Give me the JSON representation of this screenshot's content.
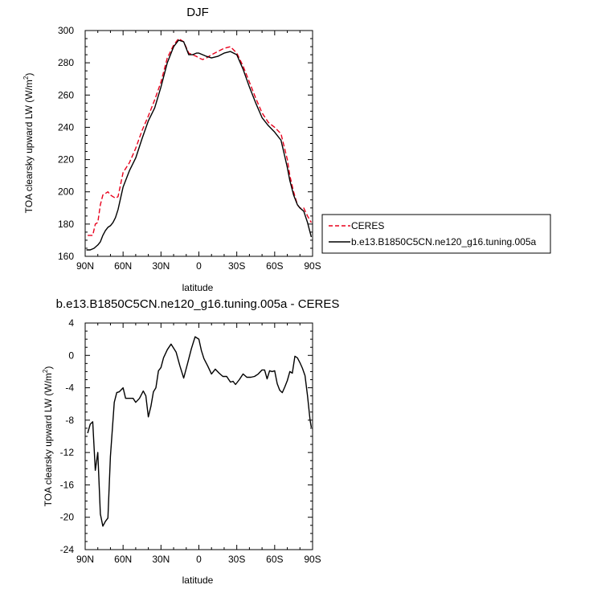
{
  "chart_data": [
    {
      "type": "line",
      "title": "DJF",
      "xlabel": "latitude",
      "ylabel": "TOA clearsky upward LW (W/m",
      "ylabel_superscript": "2",
      "ylabel_close": ")",
      "xlim": [
        90,
        -90
      ],
      "ylim": [
        160,
        300
      ],
      "x_ticks": [
        90,
        60,
        30,
        0,
        -30,
        -60,
        -90
      ],
      "x_tick_labels": [
        "90N",
        "60N",
        "30N",
        "0",
        "30S",
        "60S",
        "90S"
      ],
      "y_ticks": [
        160,
        180,
        200,
        220,
        240,
        260,
        280,
        300
      ],
      "y_tick_labels": [
        "160",
        "180",
        "200",
        "220",
        "240",
        "260",
        "280",
        "300"
      ],
      "legend_position": "right",
      "series": [
        {
          "name": "CERES",
          "color": "#e8001c",
          "style": "dashed",
          "x": [
            88,
            84,
            82,
            80,
            78,
            76,
            74,
            72,
            70,
            68,
            66,
            64,
            60,
            55,
            50,
            45,
            40,
            35,
            30,
            25,
            20,
            16,
            12,
            8,
            5,
            2,
            0,
            -3,
            -6,
            -10,
            -15,
            -20,
            -25,
            -30,
            -35,
            -40,
            -45,
            -50,
            -55,
            -60,
            -65,
            -70,
            -72,
            -75,
            -78,
            -80,
            -83,
            -86,
            -89
          ],
          "y": [
            173,
            173,
            180,
            181,
            192,
            198,
            199,
            200,
            198,
            197,
            196,
            197,
            212,
            218,
            227,
            238,
            247,
            257,
            268,
            283,
            291,
            295,
            293,
            286,
            285,
            284,
            283,
            282,
            283,
            285,
            287,
            289,
            290,
            286,
            278,
            268,
            258,
            249,
            243,
            240,
            236,
            220,
            210,
            200,
            192,
            190,
            190,
            185,
            181
          ]
        },
        {
          "name": "b.e13.B1850C5CN.ne120_g16.tuning.005a",
          "color": "#000000",
          "style": "solid",
          "x": [
            89,
            86,
            83,
            80,
            78,
            76,
            74,
            72,
            70,
            68,
            66,
            64,
            60,
            55,
            50,
            45,
            40,
            35,
            30,
            25,
            20,
            16,
            12,
            8,
            5,
            2,
            0,
            -3,
            -6,
            -10,
            -15,
            -20,
            -25,
            -30,
            -35,
            -40,
            -45,
            -50,
            -55,
            -60,
            -65,
            -68,
            -70,
            -72,
            -75,
            -78,
            -80,
            -83,
            -86,
            -89
          ],
          "y": [
            164,
            164,
            165,
            167,
            169,
            173,
            176,
            178,
            179,
            181,
            184,
            189,
            203,
            213,
            221,
            233,
            244,
            252,
            265,
            280,
            290,
            294,
            293,
            285,
            285,
            286,
            286,
            285,
            284,
            283,
            284,
            286,
            287,
            285,
            276,
            265,
            255,
            246,
            241,
            237,
            232,
            222,
            215,
            207,
            198,
            192,
            190,
            188,
            181,
            172
          ]
        }
      ]
    },
    {
      "type": "line",
      "title": "b.e13.B1850C5CN.ne120_g16.tuning.005a - CERES",
      "xlabel": "latitude",
      "ylabel": "TOA clearsky upward LW (W/m",
      "ylabel_superscript": "2",
      "ylabel_close": ")",
      "xlim": [
        90,
        -90
      ],
      "ylim": [
        -24,
        4
      ],
      "x_ticks": [
        90,
        60,
        30,
        0,
        -30,
        -60,
        -90
      ],
      "x_tick_labels": [
        "90N",
        "60N",
        "30N",
        "0",
        "30S",
        "60S",
        "90S"
      ],
      "y_ticks": [
        4,
        0,
        -4,
        -8,
        -12,
        -16,
        -20,
        -24
      ],
      "y_tick_labels": [
        "4",
        "0",
        "-4",
        "-8",
        "-12",
        "-16",
        "-20",
        "-24"
      ],
      "series": [
        {
          "color": "#000000",
          "style": "solid",
          "x": [
            88,
            86,
            84,
            82,
            80,
            78,
            76,
            74,
            72,
            70,
            67,
            65,
            63,
            60,
            58,
            55,
            52,
            50,
            47,
            44,
            42,
            40,
            38,
            36,
            34,
            32,
            30,
            28,
            25,
            22,
            18,
            15,
            12,
            9,
            6,
            3,
            0,
            -2,
            -4,
            -7,
            -10,
            -13,
            -16,
            -19,
            -22,
            -25,
            -27,
            -29,
            -32,
            -35,
            -38,
            -41,
            -44,
            -47,
            -50,
            -52,
            -54,
            -56,
            -58,
            -60,
            -62,
            -64,
            -66,
            -68,
            -70,
            -72,
            -74,
            -76,
            -78,
            -80,
            -82,
            -84,
            -86,
            -88,
            -89
          ],
          "y": [
            -9.6,
            -8.5,
            -8.2,
            -14.2,
            -12.0,
            -19.6,
            -21.1,
            -20.5,
            -20.1,
            -12.5,
            -5.8,
            -4.6,
            -4.5,
            -4.0,
            -5.3,
            -5.3,
            -5.3,
            -5.8,
            -5.3,
            -4.4,
            -5.0,
            -7.6,
            -6.3,
            -4.5,
            -4.0,
            -1.9,
            -1.5,
            -0.3,
            0.7,
            1.4,
            0.4,
            -1.3,
            -2.8,
            -1.0,
            0.8,
            2.3,
            2.0,
            0.6,
            -0.4,
            -1.3,
            -2.3,
            -1.7,
            -2.2,
            -2.6,
            -2.6,
            -3.3,
            -3.2,
            -3.6,
            -3.0,
            -2.3,
            -2.7,
            -2.7,
            -2.6,
            -2.3,
            -1.8,
            -1.8,
            -2.9,
            -1.9,
            -2.0,
            -1.9,
            -3.5,
            -4.3,
            -4.6,
            -3.9,
            -3.1,
            -2.0,
            -2.2,
            -0.1,
            -0.3,
            -0.9,
            -1.6,
            -2.5,
            -5.0,
            -8.0,
            -8.9
          ]
        }
      ]
    }
  ]
}
